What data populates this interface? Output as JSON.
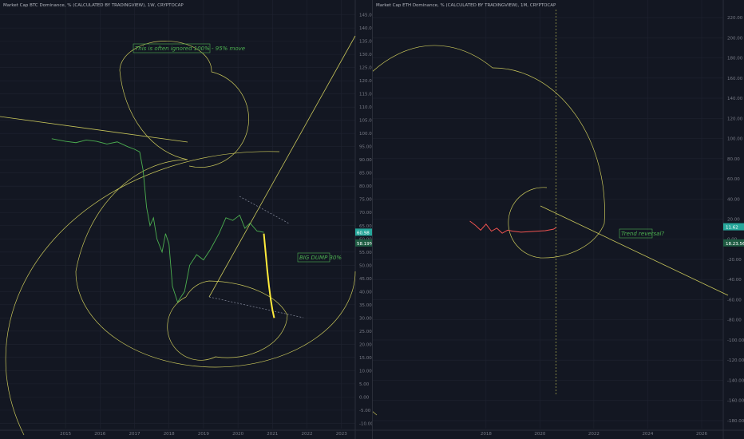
{
  "colors": {
    "background": "#131722",
    "grid": "#1f2330",
    "price_line_btc": "#4caf50",
    "spiral": "#c8c65a",
    "dump": "#ffeb3b",
    "eth_line": "#ef5350",
    "annotation": "#4caf50",
    "badge_green": "#26a69a",
    "badge_dark": "#1e5b42"
  },
  "chart_data": [
    {
      "type": "line",
      "title": "Market Cap BTC Dominance, % (CALCULATED BY TRADINGVIEW), 1W, CRYPTOCAP",
      "x_ticks": [
        "2015",
        "2016",
        "2017",
        "2018",
        "2019",
        "2020",
        "2021",
        "2022",
        "2023"
      ],
      "y_ticks": [
        "145.00",
        "140.00",
        "135.00",
        "130.00",
        "125.00",
        "120.00",
        "115.00",
        "110.00",
        "105.00",
        "100.00",
        "95.00",
        "90.00",
        "85.00",
        "80.00",
        "75.00",
        "70.00",
        "65.00",
        "60.00",
        "55.00",
        "50.00",
        "45.00",
        "40.00",
        "35.00",
        "30.00",
        "25.00",
        "20.00",
        "15.00",
        "10.00",
        "5.00",
        "0.00",
        "-5.00",
        "-10.00"
      ],
      "ylim": [
        -12,
        147
      ],
      "xlim": [
        2013.1,
        2023.4
      ],
      "series": [
        {
          "values": [
            [
              2014.6,
              98.0
            ],
            [
              2015.0,
              97.0
            ],
            [
              2015.3,
              96.5
            ],
            [
              2015.6,
              97.5
            ],
            [
              2015.9,
              97.0
            ],
            [
              2016.2,
              96.0
            ],
            [
              2016.5,
              96.8
            ],
            [
              2016.8,
              95.0
            ],
            [
              2017.0,
              94.0
            ],
            [
              2017.15,
              93.0
            ],
            [
              2017.25,
              86.0
            ],
            [
              2017.35,
              72.0
            ],
            [
              2017.45,
              65.0
            ],
            [
              2017.55,
              68.0
            ],
            [
              2017.65,
              60.0
            ],
            [
              2017.8,
              55.0
            ],
            [
              2017.9,
              62.0
            ],
            [
              2018.0,
              58.0
            ],
            [
              2018.1,
              42.0
            ],
            [
              2018.25,
              36.0
            ],
            [
              2018.45,
              40.0
            ],
            [
              2018.6,
              50.0
            ],
            [
              2018.8,
              54.0
            ],
            [
              2019.0,
              52.0
            ],
            [
              2019.2,
              56.0
            ],
            [
              2019.45,
              62.0
            ],
            [
              2019.65,
              68.0
            ],
            [
              2019.85,
              67.0
            ],
            [
              2020.05,
              69.0
            ],
            [
              2020.2,
              64.0
            ],
            [
              2020.35,
              66.0
            ],
            [
              2020.55,
              63.0
            ],
            [
              2020.75,
              62.5
            ]
          ]
        },
        {
          "name": "",
          "values": [
            [
              2020.75,
              62.0
            ],
            [
              2020.8,
              55.0
            ],
            [
              2020.85,
              48.0
            ],
            [
              2020.9,
              42.0
            ],
            [
              2020.95,
              37.0
            ],
            [
              2021.0,
              33.0
            ],
            [
              2021.05,
              30.0
            ]
          ]
        }
      ],
      "price_labels": [
        "60.98",
        "58.19%"
      ],
      "annotations": [
        "This is often ignored 100% - 95% move",
        "BIG DUMP 30%"
      ]
    },
    {
      "type": "line",
      "title": "Market Cap ETH Dominance, % (CALCULATED BY TRADINGVIEW), 1M, CRYPTOCAP",
      "x_ticks": [
        "2018",
        "2020",
        "2022",
        "2024",
        "2026"
      ],
      "y_ticks": [
        "220.00",
        "200.00",
        "180.00",
        "160.00",
        "140.00",
        "120.00",
        "100.00",
        "80.00",
        "60.00",
        "40.00",
        "20.00",
        "0.00",
        "-20.00",
        "-40.00",
        "-60.00",
        "-80.00",
        "-100.00",
        "-120.00",
        "-140.00",
        "-160.00",
        "-180.00"
      ],
      "ylim": [
        -188,
        228
      ],
      "xlim": [
        2013.8,
        2026.8
      ],
      "series": [
        {
          "values": [
            [
              2017.4,
              18.0
            ],
            [
              2017.6,
              14.0
            ],
            [
              2017.8,
              9.0
            ],
            [
              2018.0,
              15.0
            ],
            [
              2018.2,
              8.0
            ],
            [
              2018.4,
              11.0
            ],
            [
              2018.6,
              6.0
            ],
            [
              2018.8,
              9.0
            ],
            [
              2019.0,
              8.0
            ],
            [
              2019.3,
              7.0
            ],
            [
              2019.6,
              7.5
            ],
            [
              2019.9,
              8.0
            ],
            [
              2020.2,
              8.5
            ],
            [
              2020.5,
              10.0
            ],
            [
              2020.6,
              11.6
            ]
          ]
        }
      ],
      "price_labels": [
        "11.62",
        "18.23.56"
      ],
      "annotations": [
        "Trend reversal?"
      ]
    }
  ]
}
